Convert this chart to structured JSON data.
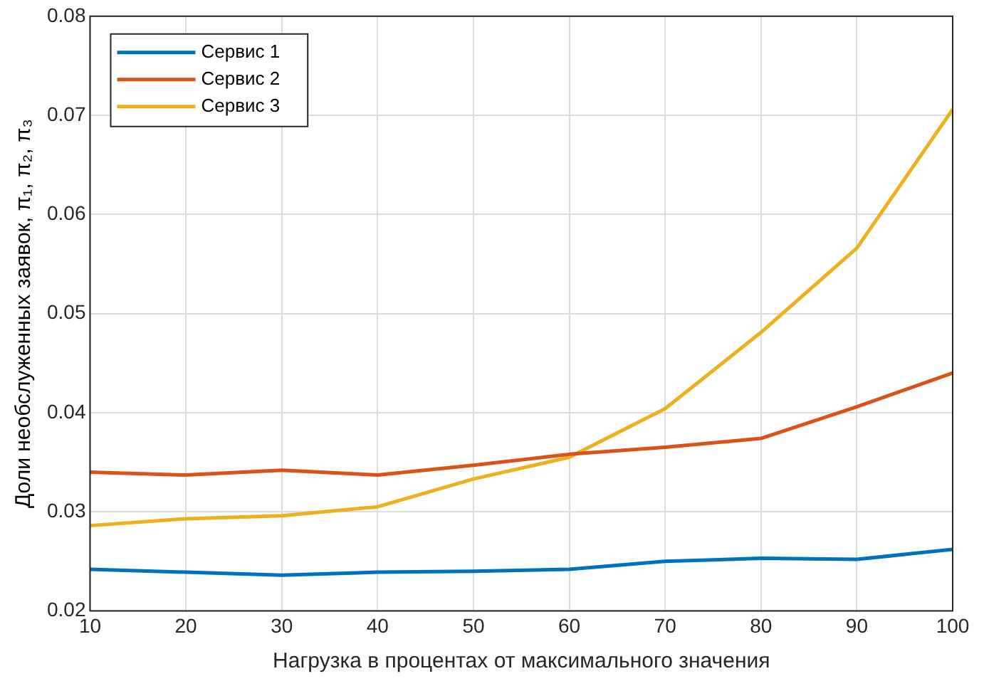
{
  "chart_data": {
    "type": "line",
    "xlabel": "Нагрузка в процентах от максимального значения",
    "ylabel": "Доли необслуженных заявок, π₁, π₂, π₃",
    "x": [
      10,
      20,
      30,
      40,
      50,
      60,
      70,
      80,
      90,
      100
    ],
    "series": [
      {
        "name": "Сервис 1",
        "color": "#0072bd",
        "values": [
          0.0242,
          0.0239,
          0.0236,
          0.0239,
          0.024,
          0.0242,
          0.025,
          0.0253,
          0.0252,
          0.0262
        ]
      },
      {
        "name": "Сервис 2",
        "color": "#d95319",
        "values": [
          0.034,
          0.0337,
          0.0342,
          0.0337,
          0.0347,
          0.0358,
          0.0365,
          0.0374,
          0.0406,
          0.044
        ]
      },
      {
        "name": "Сервис 3",
        "color": "#edb120",
        "values": [
          0.0286,
          0.0293,
          0.0296,
          0.0305,
          0.0333,
          0.0355,
          0.0404,
          0.0481,
          0.0566,
          0.0706
        ]
      }
    ],
    "xlim": [
      10,
      100
    ],
    "xticks": [
      10,
      20,
      30,
      40,
      50,
      60,
      70,
      80,
      90,
      100
    ],
    "ylim": [
      0.02,
      0.08
    ],
    "yticks": [
      0.02,
      0.03,
      0.04,
      0.05,
      0.06,
      0.07,
      0.08
    ],
    "grid": true,
    "legend": "top left",
    "marker": "none",
    "line_style": "solid"
  }
}
